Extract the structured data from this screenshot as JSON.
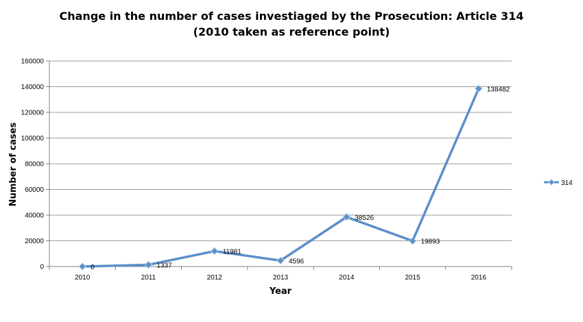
{
  "chart_data": {
    "type": "line",
    "title": "Change in the number of cases investiaged by the Prosecution: Article 314",
    "subtitle": "(2010 taken as reference point)",
    "xlabel": "Year",
    "ylabel": "Number of cases",
    "categories": [
      "2010",
      "2011",
      "2012",
      "2013",
      "2014",
      "2015",
      "2016"
    ],
    "series": [
      {
        "name": "314",
        "values": [
          0,
          1337,
          11981,
          4596,
          38526,
          19893,
          138482
        ],
        "color": "#5b8fc9"
      }
    ],
    "ylim": [
      0,
      160000
    ],
    "yticks": [
      "0",
      "20000",
      "40000",
      "60000",
      "80000",
      "100000",
      "120000",
      "140000",
      "160000"
    ],
    "data_labels": [
      "0",
      "1337",
      "11981",
      "4596",
      "38526",
      "19893",
      "138482"
    ],
    "grid": "horizontal",
    "legend_position": "right",
    "gridline_color": "#9b9b9b",
    "axis_color": "#808080",
    "marker": "diamond"
  }
}
